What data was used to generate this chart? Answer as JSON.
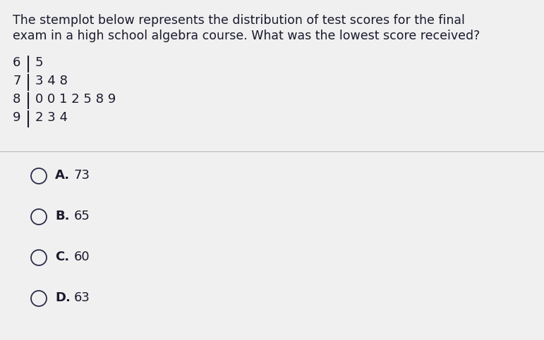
{
  "question_text_line1": "The stemplot below represents the distribution of test scores for the final",
  "question_text_line2": "exam in a high school algebra course. What was the lowest score received?",
  "stem_rows": [
    {
      "stem": "6",
      "leaves": "5"
    },
    {
      "stem": "7",
      "leaves": "3 4 8"
    },
    {
      "stem": "8",
      "leaves": "0 0 1 2 5 8 9"
    },
    {
      "stem": "9",
      "leaves": "2 3 4"
    }
  ],
  "choices": [
    {
      "label": "A.",
      "value": "73"
    },
    {
      "label": "B.",
      "value": "65"
    },
    {
      "label": "C.",
      "value": "60"
    },
    {
      "label": "D.",
      "value": "63"
    }
  ],
  "bg_color": "#f0f0f0",
  "text_color": "#1a1a2e",
  "question_fontsize": 12.5,
  "stem_fontsize": 13.0,
  "choice_label_fontsize": 13.0,
  "choice_value_fontsize": 13.0,
  "divider_color": "#bbbbbb",
  "circle_color": "#2a2a4a",
  "circle_lw": 1.3
}
